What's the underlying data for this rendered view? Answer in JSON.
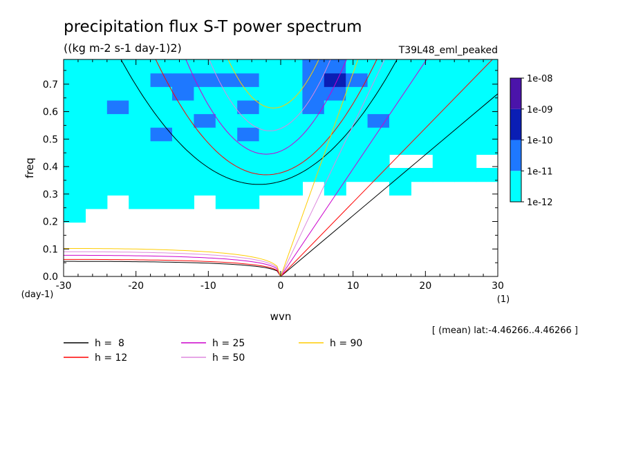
{
  "chart_data": {
    "type": "heatmap",
    "title": "precipitation flux S-T power spectrum",
    "subtitle": "((kg m-2 s-1 day-1)2)",
    "run_label": "T39L48_eml_peaked",
    "xlabel": "wvn",
    "ylabel": "freq",
    "x_unit": "(1)",
    "y_unit": "(day-1)",
    "xlim": [
      -30,
      30
    ],
    "ylim": [
      0,
      0.79
    ],
    "x_ticks": [
      -30,
      -20,
      -10,
      0,
      10,
      20,
      30
    ],
    "x_tick_labels": [
      "-30",
      "-20",
      "-10",
      "0",
      "10",
      "20",
      "30"
    ],
    "y_ticks": [
      0,
      0.1,
      0.2,
      0.3,
      0.4,
      0.5,
      0.6,
      0.7
    ],
    "y_tick_labels": [
      "0.0",
      "0.1",
      "0.2",
      "0.3",
      "0.4",
      "0.5",
      "0.6",
      "0.7"
    ],
    "annotation": "[ (mean) lat:-4.46266..4.46266 ]",
    "colorbar": {
      "labels": [
        "1e-08",
        "1e-09",
        "1e-10",
        "1e-11",
        "1e-12"
      ],
      "levels": [
        1e-12,
        1e-11,
        1e-10,
        1e-09,
        1e-08
      ],
      "colors": [
        "#00ffff",
        "#1e78ff",
        "#0a1eb4",
        "#4b14aa"
      ]
    },
    "contour_cells": {
      "x_range": [
        -30,
        30
      ],
      "y_range": [
        0,
        0.79
      ],
      "nx": 20,
      "ny": 16,
      "levels": [
        [
          0,
          0,
          0,
          0,
          0,
          0,
          0,
          0,
          0,
          0,
          0,
          0,
          0,
          0,
          0,
          0,
          0,
          0,
          0,
          0
        ],
        [
          0,
          0,
          0,
          0,
          0,
          0,
          0,
          0,
          0,
          0,
          0,
          0,
          0,
          0,
          0,
          0,
          0,
          0,
          0,
          0
        ],
        [
          0,
          0,
          0,
          0,
          0,
          0,
          0,
          0,
          0,
          0,
          0,
          0,
          0,
          0,
          0,
          0,
          0,
          0,
          0,
          0
        ],
        [
          0,
          0,
          0,
          0,
          0,
          0,
          0,
          0,
          0,
          0,
          0,
          0,
          0,
          0,
          0,
          0,
          0,
          0,
          0,
          0
        ],
        [
          1,
          0,
          0,
          0,
          0,
          0,
          0,
          0,
          0,
          0,
          0,
          0,
          0,
          0,
          0,
          0,
          0,
          0,
          0,
          0
        ],
        [
          1,
          1,
          0,
          1,
          1,
          1,
          0,
          1,
          1,
          0,
          0,
          0,
          0,
          0,
          0,
          0,
          0,
          0,
          0,
          0
        ],
        [
          1,
          1,
          1,
          1,
          1,
          1,
          1,
          1,
          1,
          1,
          1,
          0,
          1,
          0,
          0,
          1,
          0,
          0,
          0,
          0
        ],
        [
          1,
          1,
          1,
          1,
          1,
          1,
          1,
          1,
          1,
          1,
          1,
          1,
          1,
          1,
          1,
          1,
          1,
          1,
          1,
          1
        ],
        [
          1,
          1,
          1,
          1,
          1,
          1,
          1,
          1,
          1,
          1,
          1,
          1,
          1,
          1,
          1,
          0,
          0,
          1,
          1,
          0
        ],
        [
          1,
          1,
          1,
          1,
          1,
          1,
          1,
          1,
          1,
          1,
          1,
          1,
          1,
          1,
          1,
          1,
          1,
          1,
          1,
          1
        ],
        [
          1,
          1,
          1,
          1,
          2,
          1,
          1,
          1,
          2,
          1,
          1,
          1,
          1,
          1,
          1,
          1,
          1,
          1,
          1,
          1
        ],
        [
          1,
          1,
          1,
          1,
          1,
          1,
          2,
          1,
          1,
          1,
          1,
          1,
          1,
          1,
          2,
          1,
          1,
          1,
          1,
          1
        ],
        [
          1,
          1,
          2,
          1,
          1,
          1,
          1,
          1,
          2,
          1,
          1,
          2,
          1,
          1,
          1,
          1,
          1,
          1,
          1,
          1
        ],
        [
          1,
          1,
          1,
          1,
          1,
          2,
          1,
          1,
          1,
          1,
          1,
          2,
          2,
          1,
          1,
          1,
          1,
          1,
          1,
          1
        ],
        [
          1,
          1,
          1,
          1,
          2,
          2,
          2,
          2,
          2,
          1,
          1,
          2,
          3,
          2,
          1,
          1,
          1,
          1,
          1,
          1
        ],
        [
          1,
          1,
          1,
          1,
          1,
          1,
          1,
          1,
          1,
          1,
          1,
          2,
          2,
          1,
          1,
          1,
          1,
          1,
          1,
          1
        ]
      ]
    },
    "series": [
      {
        "name": "h =  8",
        "color": "#000000",
        "kelvin_slope": 1.33,
        "mrg_max": 0.055,
        "ig_min": 0.335,
        "ig_shift": -3,
        "ig_a": 0.00125
      },
      {
        "name": "h = 12",
        "color": "#ff0000",
        "kelvin_slope": 1.62,
        "mrg_max": 0.062,
        "ig_min": 0.37,
        "ig_shift": -2,
        "ig_a": 0.0018
      },
      {
        "name": "h = 25",
        "color": "#cc00cc",
        "kelvin_slope": 2.35,
        "mrg_max": 0.077,
        "ig_min": 0.445,
        "ig_shift": -2,
        "ig_a": 0.0028
      },
      {
        "name": "h = 50",
        "color": "#dd88dd",
        "kelvin_slope": 3.3,
        "mrg_max": 0.09,
        "ig_min": 0.53,
        "ig_shift": -1.5,
        "ig_a": 0.0037
      },
      {
        "name": "h = 90",
        "color": "#ffcc00",
        "kelvin_slope": 4.44,
        "mrg_max": 0.102,
        "ig_min": 0.613,
        "ig_shift": -1,
        "ig_a": 0.0045
      }
    ],
    "legend": {
      "items": [
        {
          "label": "h =  8",
          "color": "#000000"
        },
        {
          "label": "h = 12",
          "color": "#ff0000"
        },
        {
          "label": "h = 25",
          "color": "#cc00cc"
        },
        {
          "label": "h = 50",
          "color": "#dd88dd"
        },
        {
          "label": "h = 90",
          "color": "#ffcc00"
        }
      ]
    }
  }
}
